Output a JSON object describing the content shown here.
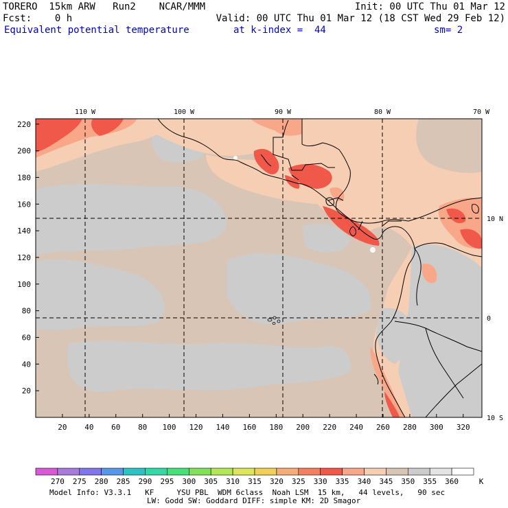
{
  "header": {
    "line1_left": "TORERO  15km ARW   Run2    NCAR/MMM",
    "line1_right": "Init: 00 UTC Thu 01 Mar 12",
    "line2_left": "Fcst:    0 h",
    "line2_right": "Valid: 00 UTC Thu 01 Mar 12 (18 CST Wed 29 Feb 12)",
    "line3_field": "Equivalent potential temperature",
    "line3_level": "at k-index =  44",
    "line3_smooth": "sm= 2"
  },
  "map": {
    "top_lon_labels": [
      "110 W",
      "100 W",
      "90 W",
      "80 W",
      "70 W"
    ],
    "left_grid_labels": [
      "220",
      "200",
      "180",
      "160",
      "140",
      "120",
      "100",
      "80",
      "60",
      "40",
      "20"
    ],
    "bottom_grid_labels": [
      "20",
      "40",
      "60",
      "80",
      "100",
      "120",
      "140",
      "160",
      "180",
      "200",
      "220",
      "240",
      "260",
      "280",
      "300",
      "320"
    ],
    "right_lat_labels": [
      "10 N",
      "0",
      "10 S"
    ],
    "colors": {
      "land_orange": "#f5ceb4",
      "sea_tan": "#d9c5b5",
      "sea_gray": "#cccccc",
      "salmon": "#f8a889",
      "red": "#f0584a",
      "coast": "#000000"
    }
  },
  "colorbar": {
    "labels": [
      "270",
      "275",
      "280",
      "285",
      "290",
      "295",
      "300",
      "305",
      "310",
      "315",
      "320",
      "325",
      "330",
      "335",
      "340",
      "345",
      "350",
      "355",
      "360"
    ],
    "unit": "K",
    "colors": [
      "#d65ad6",
      "#a87ad9",
      "#8277e8",
      "#5896e6",
      "#2fc2c2",
      "#30d9a5",
      "#48e07a",
      "#82e05a",
      "#b4e65a",
      "#dce65a",
      "#f0d05a",
      "#f5ad78",
      "#f08060",
      "#f0584a",
      "#f8a889",
      "#f5ceb4",
      "#d9c5b5",
      "#cccccc",
      "#e4e4e4",
      "#ffffff"
    ]
  },
  "footer": {
    "line1": "Model Info: V3.3.1   KF     YSU PBL  WDM 6class  Noah LSM  15 km,   44 levels,   90 sec",
    "line2": "LW: Godd SW: Goddard DIFF: simple KM: 2D Smagor"
  }
}
